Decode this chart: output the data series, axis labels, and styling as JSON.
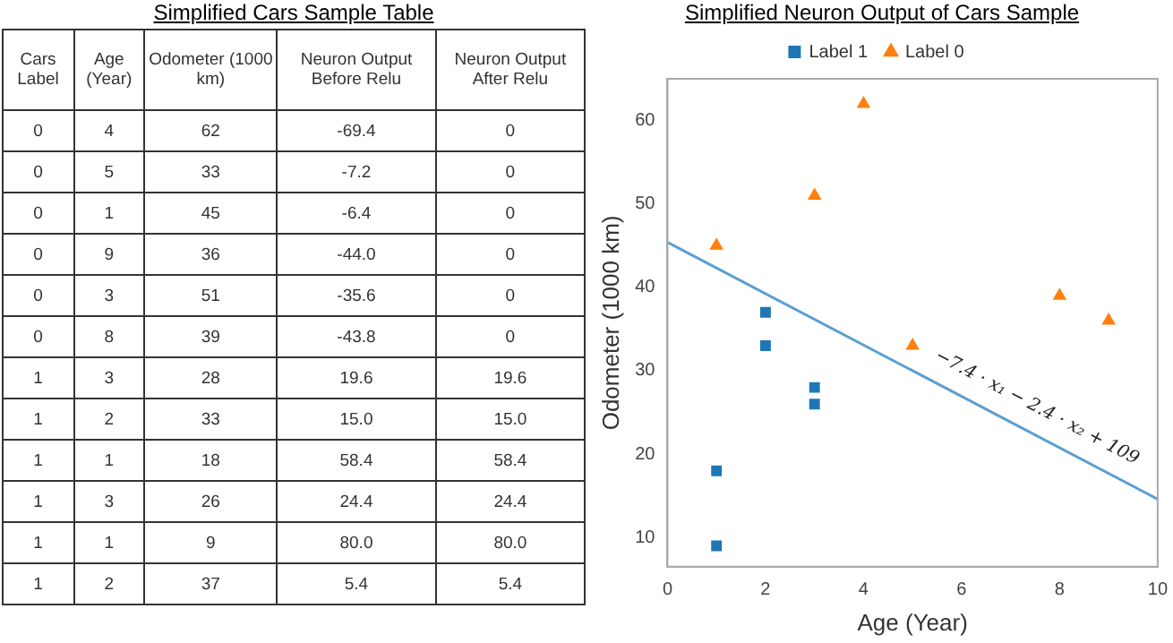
{
  "chart_data": [
    {
      "type": "other",
      "title": "Simplified Cars Sample Table",
      "annotations": [
        "Cars Label",
        "Age (Year)",
        "Odometer (1000 km)",
        "Neuron Output Before Relu",
        "Neuron Output After Relu",
        "0",
        "4",
        "62",
        "-69.4",
        "0",
        "0",
        "5",
        "33",
        "-7.2",
        "0",
        "0",
        "1",
        "45",
        "-6.4",
        "0",
        "0",
        "9",
        "36",
        "-44.0",
        "0",
        "0",
        "3",
        "51",
        "-35.6",
        "0",
        "0",
        "8",
        "39",
        "-43.8",
        "0",
        "1",
        "3",
        "28",
        "19.6",
        "19.6",
        "1",
        "2",
        "33",
        "15.0",
        "15.0",
        "1",
        "1",
        "18",
        "58.4",
        "58.4",
        "1",
        "3",
        "26",
        "24.4",
        "24.4",
        "1",
        "1",
        "9",
        "80.0",
        "80.0",
        "1",
        "2",
        "37",
        "5.4",
        "5.4"
      ]
    },
    {
      "type": "scatter",
      "title": "Simplified Neuron Output of Cars Sample",
      "xlabel": "Age (Year)",
      "ylabel": "Odometer (1000 km)",
      "xlim": [
        0,
        10
      ],
      "xticks": [
        0,
        2,
        4,
        6,
        8,
        10
      ],
      "ylim": [
        6.5,
        65
      ],
      "yticks": [
        10,
        20,
        30,
        40,
        50,
        60
      ],
      "grid": false,
      "legend": "top",
      "series": [
        {
          "name": "Label 1",
          "type": "scatter",
          "marker": "square",
          "color": "#1f77b4",
          "x": [
            3,
            2,
            1,
            3,
            1,
            2
          ],
          "values": [
            28,
            33,
            18,
            26,
            9,
            37
          ]
        },
        {
          "name": "Label 0",
          "type": "scatter",
          "marker": "triangle",
          "color": "#ff7f0e",
          "x": [
            4,
            5,
            1,
            9,
            3,
            8
          ],
          "values": [
            62,
            33,
            45,
            36,
            51,
            39
          ]
        },
        {
          "type": "line",
          "marker": "none",
          "color": "#5b9fd0",
          "x": [
            0,
            10
          ],
          "values": [
            45.4,
            14.6
          ]
        }
      ],
      "annotations": [
        "−7.4 · x₁ − 2.4 · x₂ + 109"
      ]
    }
  ]
}
